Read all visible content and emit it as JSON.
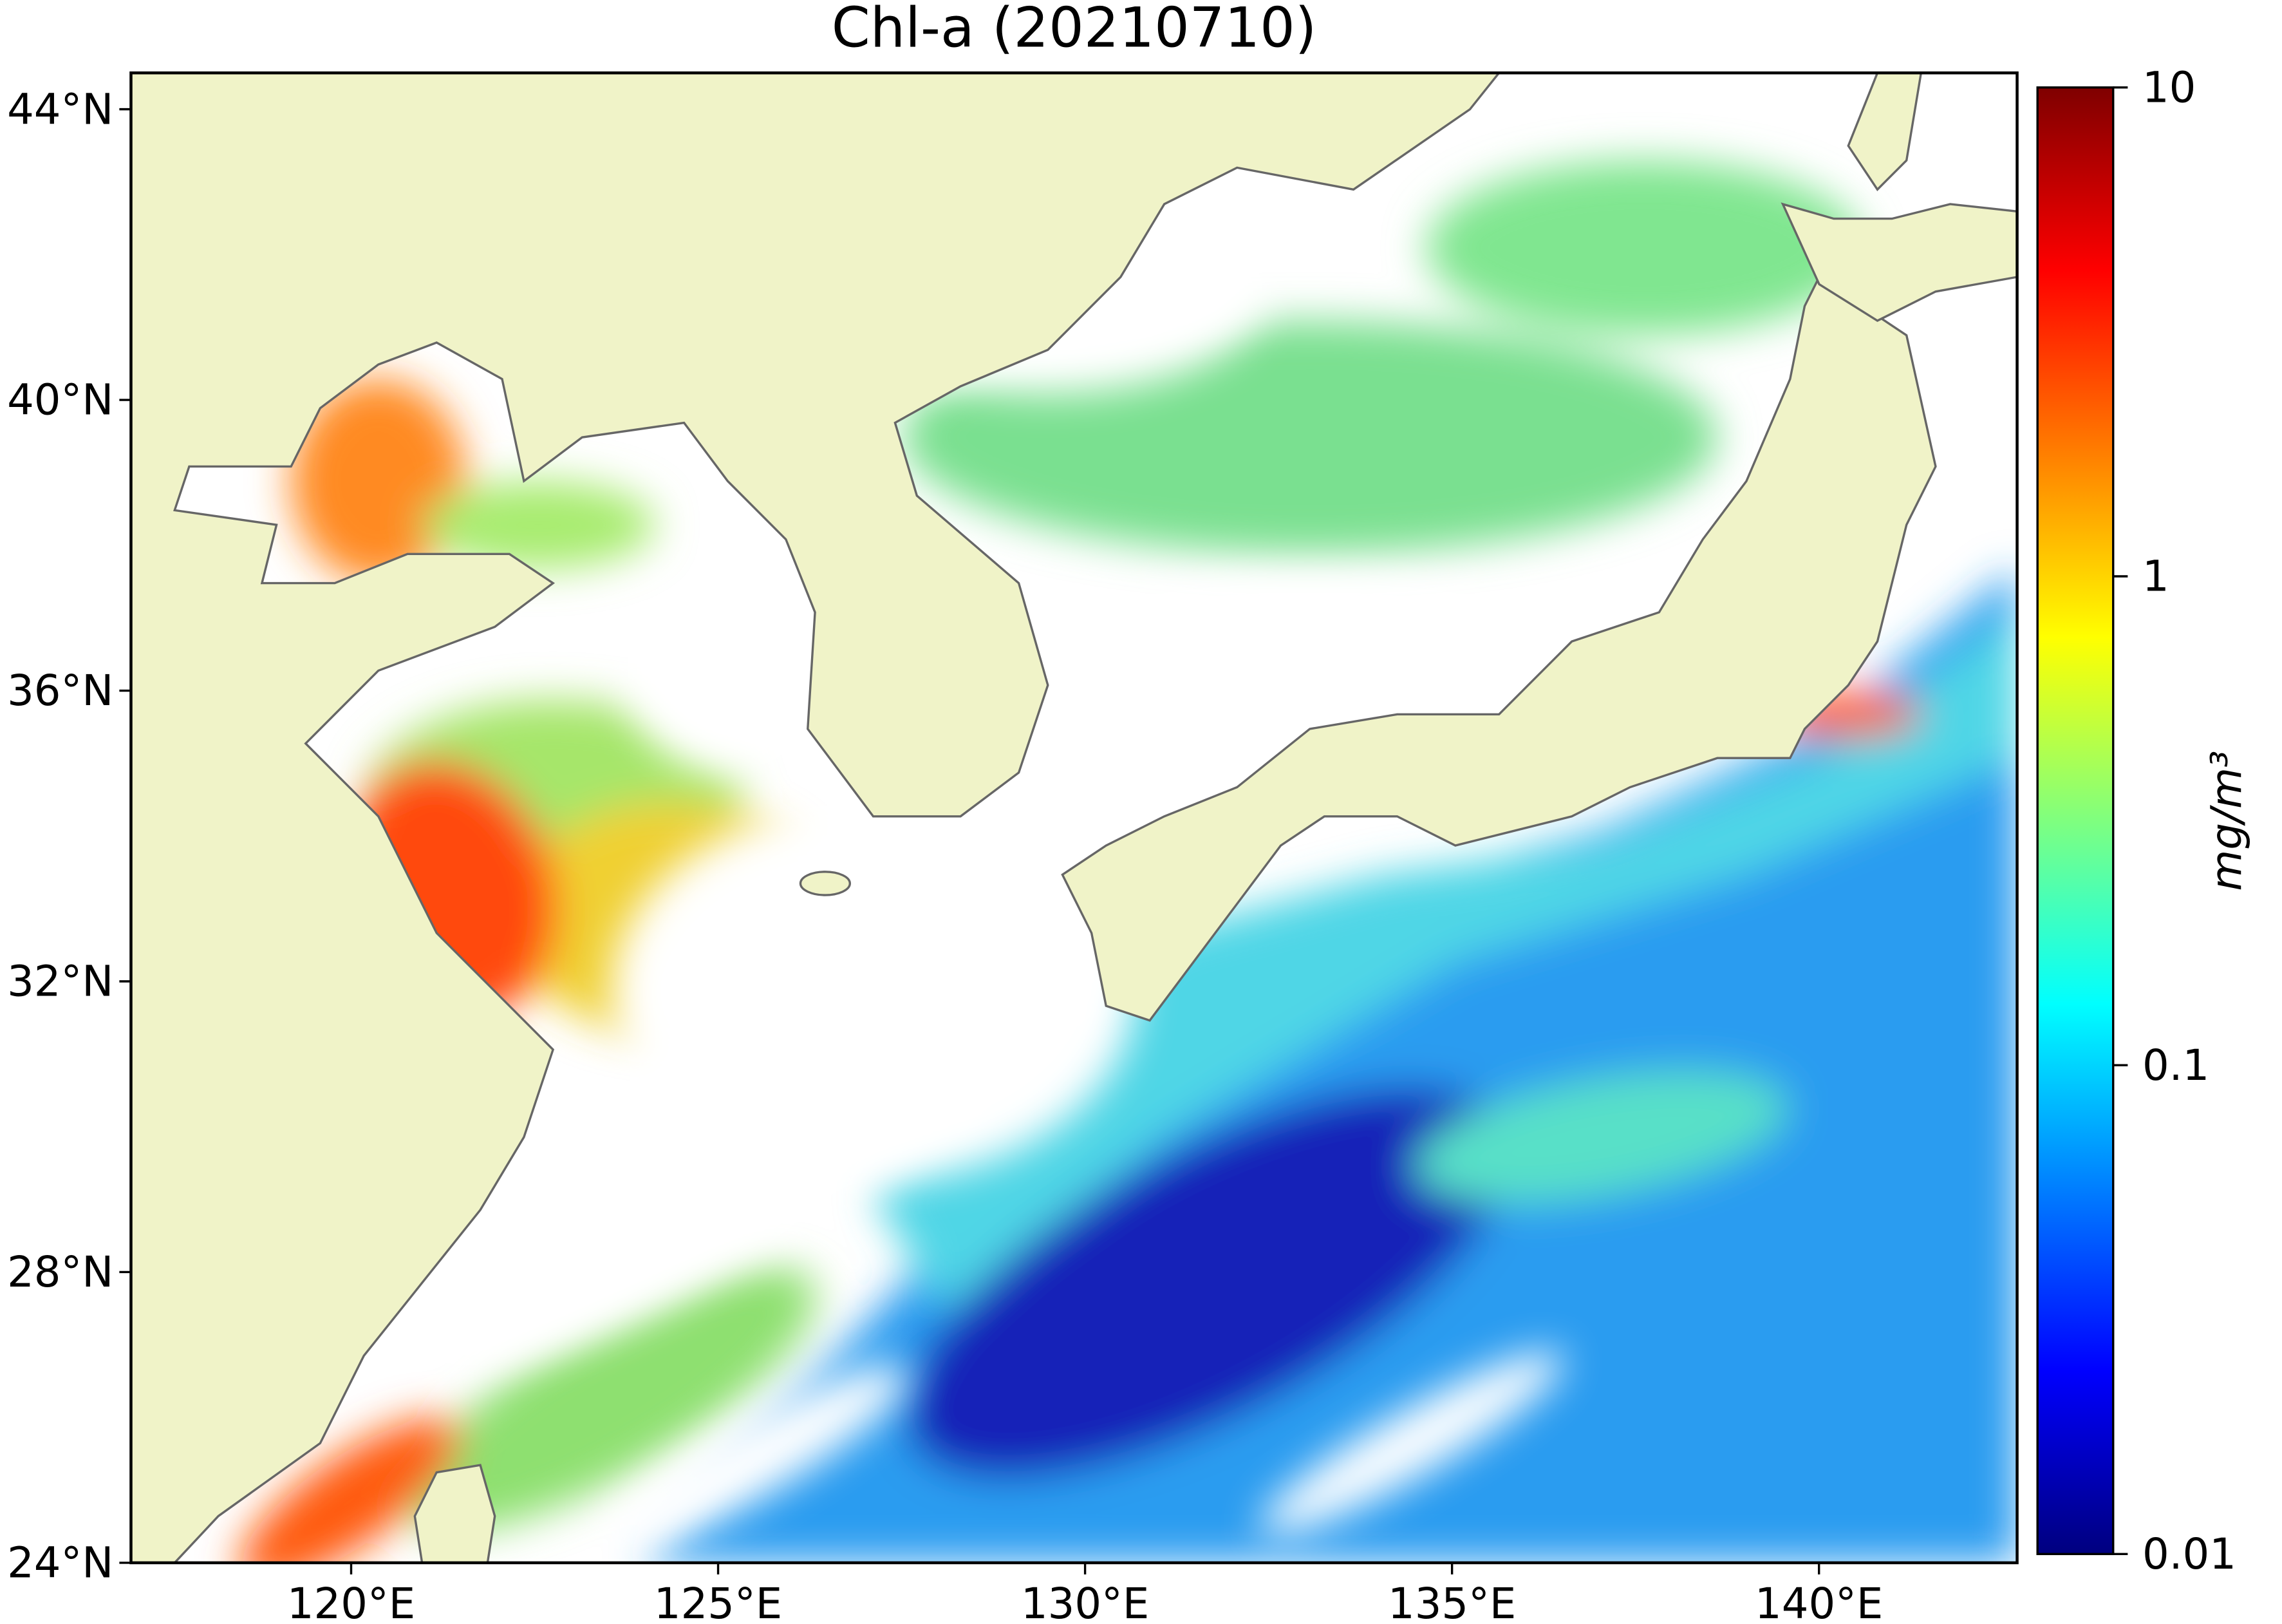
{
  "chart_data": {
    "type": "map",
    "title": "Chl-a (20210710)",
    "xlim": [
      117,
      142.7
    ],
    "ylim": [
      24,
      44.5
    ],
    "xticks": [
      {
        "value": 120,
        "label": "120°E"
      },
      {
        "value": 125,
        "label": "125°E"
      },
      {
        "value": 130,
        "label": "130°E"
      },
      {
        "value": 135,
        "label": "135°E"
      },
      {
        "value": 140,
        "label": "140°E"
      }
    ],
    "yticks": [
      {
        "value": 24,
        "label": "24°N"
      },
      {
        "value": 28,
        "label": "28°N"
      },
      {
        "value": 32,
        "label": "32°N"
      },
      {
        "value": 36,
        "label": "36°N"
      },
      {
        "value": 40,
        "label": "40°N"
      },
      {
        "value": 44,
        "label": "44°N"
      }
    ],
    "colorbar": {
      "label": "mg/m³",
      "scale": "log",
      "lim": [
        0.01,
        10
      ],
      "ticks": [
        0.01,
        0.1,
        1,
        10
      ],
      "colormap": "jet"
    }
  }
}
